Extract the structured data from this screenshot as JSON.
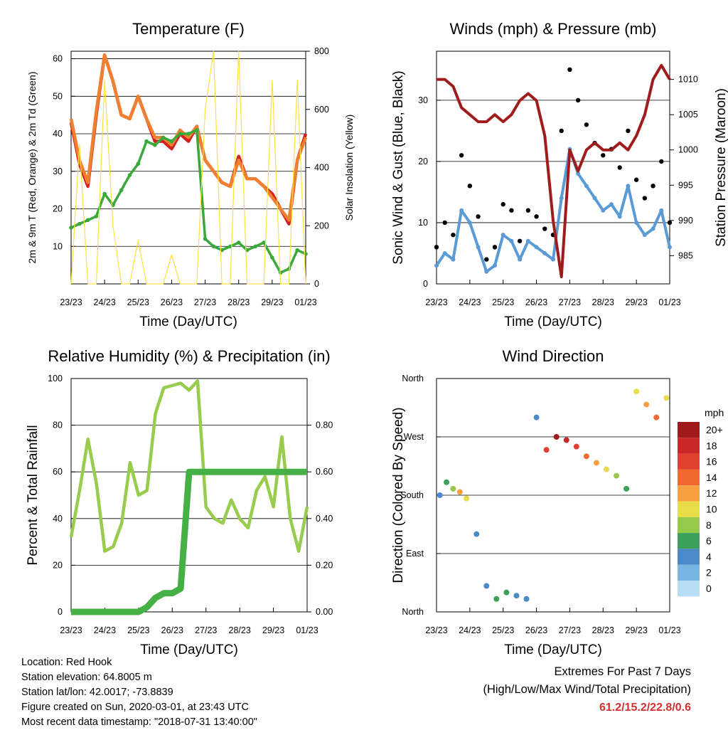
{
  "days": [
    "23/23",
    "24/23",
    "25/23",
    "26/23",
    "27/23",
    "28/23",
    "29/23",
    "01/23"
  ],
  "footer": {
    "location": "Location: Red Hook",
    "elevation": "Station elevation: 64.8005 m",
    "latlon": "Station lat/lon: 42.0017; -73.8839",
    "created": "Figure created on Sun, 2020-03-01, at 23:43 UTC",
    "recent": "Most recent data timestamp: \"2018-07-31 13:40:00\""
  },
  "extremes": {
    "title": "Extremes For Past 7 Days",
    "subtitle": "(High/Low/Max Wind/Total Precipitation)",
    "values": "61.2/15.2/22.8/0.6"
  },
  "chart_data": [
    {
      "type": "line",
      "title": "Temperature (F)",
      "xlabel": "Time (Day/UTC)",
      "ylabel": "2m & 9m T (Red, Orange) & 2m Td (Green)",
      "ylabel_right": "Solar Insolation (Yellow)",
      "ylim": [
        0,
        62
      ],
      "ylim_right": [
        0,
        800
      ],
      "yticks": [
        10,
        20,
        30,
        40,
        50,
        60
      ],
      "yticks_right": [
        0,
        200,
        400,
        600,
        800
      ],
      "x": [
        0,
        0.25,
        0.5,
        0.75,
        1,
        1.25,
        1.5,
        1.75,
        2,
        2.25,
        2.5,
        2.75,
        3,
        3.25,
        3.5,
        3.75,
        4,
        4.25,
        4.5,
        4.75,
        5,
        5.25,
        5.5,
        5.75,
        6,
        6.25,
        6.5,
        6.75,
        7
      ],
      "series": [
        {
          "name": "2m T",
          "color": "#d42020",
          "values": [
            43,
            32,
            26,
            45,
            61,
            54,
            45,
            44,
            50,
            44,
            38,
            38,
            36,
            40,
            38,
            42,
            33,
            30,
            27,
            26,
            34,
            28,
            28,
            26,
            24,
            20,
            16,
            33,
            40
          ]
        },
        {
          "name": "9m T",
          "color": "#f08030",
          "values": [
            44,
            33,
            27,
            46,
            61,
            54,
            45,
            44,
            50,
            44,
            39,
            39,
            37,
            41,
            39,
            42,
            33,
            30,
            27,
            26,
            33,
            28,
            28,
            26,
            23,
            20,
            17,
            33,
            39
          ]
        },
        {
          "name": "2m Td",
          "color": "#3aa83a",
          "values": [
            15,
            16,
            17,
            18,
            24,
            21,
            25,
            29,
            32,
            38,
            37,
            39,
            38,
            40,
            40,
            41,
            12,
            10,
            9,
            10,
            11,
            9,
            10,
            11,
            7,
            3,
            4,
            9,
            8
          ]
        },
        {
          "name": "Solar",
          "color": "#ffe040",
          "axis": "right",
          "values": [
            0,
            480,
            0,
            0,
            700,
            200,
            0,
            0,
            150,
            0,
            0,
            0,
            100,
            0,
            0,
            0,
            600,
            800,
            0,
            0,
            800,
            0,
            0,
            0,
            700,
            0,
            0,
            700,
            0
          ]
        }
      ]
    },
    {
      "type": "scatter",
      "title": "Winds (mph) & Pressure (mb)",
      "xlabel": "Time (Day/UTC)",
      "ylabel": "Sonic Wind & Gust (Blue, Black)",
      "ylabel_right": "Station Pressure (Maroon)",
      "ylim": [
        0,
        38
      ],
      "ylim_right": [
        981,
        1014
      ],
      "yticks": [
        0,
        10,
        20,
        30
      ],
      "yticks_right": [
        985,
        990,
        995,
        1000,
        1005,
        1010
      ],
      "x": [
        0,
        0.25,
        0.5,
        0.75,
        1,
        1.25,
        1.5,
        1.75,
        2,
        2.25,
        2.5,
        2.75,
        3,
        3.25,
        3.5,
        3.75,
        4,
        4.25,
        4.5,
        4.75,
        5,
        5.25,
        5.5,
        5.75,
        6,
        6.25,
        6.5,
        6.75,
        7
      ],
      "series": [
        {
          "name": "Wind",
          "color": "#5b9bd5",
          "values": [
            3,
            5,
            4,
            12,
            10,
            6,
            2,
            3,
            8,
            7,
            4,
            7,
            6,
            5,
            4,
            14,
            22,
            18,
            16,
            14,
            12,
            13,
            11,
            16,
            10,
            8,
            9,
            12,
            6
          ]
        },
        {
          "name": "Gust",
          "color": "#000000",
          "values": [
            6,
            10,
            8,
            21,
            16,
            11,
            4,
            6,
            13,
            12,
            7,
            12,
            11,
            9,
            8,
            25,
            35,
            30,
            26,
            23,
            21,
            22,
            19,
            25,
            17,
            14,
            16,
            20,
            10
          ]
        },
        {
          "name": "Pressure",
          "color": "#a01c1c",
          "axis": "right",
          "values": [
            1010,
            1010,
            1009,
            1006,
            1005,
            1004,
            1004,
            1005,
            1004,
            1005,
            1007,
            1008,
            1007,
            1002,
            990,
            982,
            1000,
            997,
            1000,
            1001,
            1000,
            1000,
            1001,
            1000,
            1002,
            1005,
            1010,
            1012,
            1010
          ]
        }
      ]
    },
    {
      "type": "line",
      "title": "Relative Humidity (%) & Precipitation (in)",
      "xlabel": "Time (Day/UTC)",
      "ylabel": "Percent & Total Rainfall",
      "ylim": [
        0,
        100
      ],
      "ylim_right": [
        0,
        1.0
      ],
      "yticks": [
        0,
        20,
        40,
        60,
        80,
        100
      ],
      "yticks_right": [
        0.0,
        0.2,
        0.4,
        0.6,
        0.8
      ],
      "x": [
        0,
        0.25,
        0.5,
        0.75,
        1,
        1.25,
        1.5,
        1.75,
        2,
        2.25,
        2.5,
        2.75,
        3,
        3.25,
        3.5,
        3.75,
        4,
        4.25,
        4.5,
        4.75,
        5,
        5.25,
        5.5,
        5.75,
        6,
        6.25,
        6.5,
        6.75,
        7
      ],
      "series": [
        {
          "name": "RH",
          "color": "#98cc4c",
          "values": [
            32,
            52,
            74,
            55,
            26,
            28,
            38,
            64,
            50,
            52,
            85,
            96,
            97,
            98,
            95,
            99,
            45,
            40,
            38,
            48,
            40,
            36,
            52,
            58,
            45,
            75,
            40,
            26,
            45
          ]
        },
        {
          "name": "Precip",
          "color": "#45b045",
          "axis": "right",
          "values": [
            0,
            0,
            0,
            0,
            0,
            0,
            0,
            0,
            0,
            0.02,
            0.06,
            0.08,
            0.08,
            0.1,
            0.6,
            0.6,
            0.6,
            0.6,
            0.6,
            0.6,
            0.6,
            0.6,
            0.6,
            0.6,
            0.6,
            0.6,
            0.6,
            0.6,
            0.6
          ]
        }
      ]
    },
    {
      "type": "scatter",
      "title": "Wind Direction",
      "xlabel": "Time (Day/UTC)",
      "ylabel": "Direction (Colored By Speed)",
      "ytick_labels": [
        "North",
        "East",
        "South",
        "West",
        "North"
      ],
      "legend_title": "mph",
      "legend_labels": [
        "20+",
        "18",
        "16",
        "14",
        "12",
        "10",
        "8",
        "6",
        "4",
        "2",
        "0"
      ],
      "legend_colors": [
        "#a01c1c",
        "#c82828",
        "#e04030",
        "#f06a30",
        "#f8a040",
        "#e8dc48",
        "#96c84a",
        "#3ca05a",
        "#4a8ac8",
        "#7ab6e4",
        "#b8def6"
      ],
      "x": [
        0.1,
        0.3,
        0.5,
        0.7,
        0.9,
        1.2,
        1.5,
        1.8,
        2.1,
        2.4,
        2.7,
        3.0,
        3.3,
        3.6,
        3.9,
        4.2,
        4.5,
        4.8,
        5.1,
        5.4,
        5.7,
        6.0,
        6.3,
        6.6,
        6.9
      ],
      "values": [
        180,
        200,
        190,
        185,
        175,
        120,
        40,
        20,
        30,
        25,
        20,
        300,
        250,
        270,
        265,
        255,
        240,
        230,
        220,
        210,
        190,
        340,
        320,
        300,
        330
      ],
      "speeds": [
        3,
        5,
        8,
        12,
        9,
        4,
        3,
        5,
        6,
        4,
        3,
        4,
        16,
        20,
        18,
        16,
        14,
        12,
        10,
        8,
        6,
        10,
        12,
        14,
        9
      ]
    }
  ]
}
